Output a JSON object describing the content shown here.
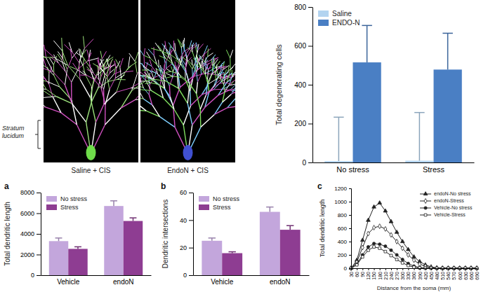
{
  "figure": {
    "images": [
      {
        "caption": "Saline + CIS"
      },
      {
        "caption": "EndoN + CIS"
      }
    ],
    "region_label": "Stratum lucidum"
  },
  "chart_data": [
    {
      "type": "bar",
      "ylabel": "Total degenerating cells",
      "categories": [
        "No stress",
        "Stress"
      ],
      "series": [
        {
          "name": "Saline",
          "color": "#b3d4f0",
          "values": [
            7,
            9
          ],
          "errors": [
            226,
            248
          ]
        },
        {
          "name": "ENDO-N",
          "color": "#4a7fc4",
          "values": [
            515,
            478
          ],
          "errors": [
            190,
            187
          ]
        }
      ],
      "ylim": [
        0,
        800
      ],
      "yticks": [
        0,
        200,
        400,
        600,
        800
      ],
      "legend": "upper left"
    },
    {
      "type": "bar",
      "title": "a",
      "ylabel": "Total dendritic length",
      "categories": [
        "Vehicle",
        "endoN"
      ],
      "series": [
        {
          "name": "No stress",
          "color": "#c3a6dc",
          "values": [
            3300,
            6700
          ],
          "errors": [
            300,
            500
          ]
        },
        {
          "name": "Stress",
          "color": "#8e3d92",
          "values": [
            2550,
            5250
          ],
          "errors": [
            200,
            300
          ]
        }
      ],
      "ylim": [
        0,
        8000
      ],
      "yticks": [
        0,
        2000,
        4000,
        6000,
        8000
      ],
      "legend": "upper left"
    },
    {
      "type": "bar",
      "title": "b",
      "ylabel": "Dendritic intersections",
      "categories": [
        "Vehicle",
        "endoN"
      ],
      "series": [
        {
          "name": "No stress",
          "color": "#c3a6dc",
          "values": [
            25,
            46
          ],
          "errors": [
            2,
            3.5
          ]
        },
        {
          "name": "Stress",
          "color": "#8e3d92",
          "values": [
            16,
            33
          ],
          "errors": [
            1,
            3
          ]
        }
      ],
      "ylim": [
        0,
        60
      ],
      "yticks": [
        0,
        20,
        40,
        60
      ],
      "legend": "upper left"
    },
    {
      "type": "line",
      "title": "c",
      "ylabel": "Total dendritic length",
      "xlabel": "Distance from the soma (mm)",
      "x": [
        30,
        60,
        90,
        120,
        150,
        180,
        210,
        240,
        270,
        300,
        330,
        360,
        390,
        420,
        450,
        480,
        510,
        540,
        570,
        600,
        630,
        660,
        690
      ],
      "series": [
        {
          "name": "endoN-No stress",
          "color": "#222222",
          "marker": "triangle",
          "values": [
            0,
            120,
            420,
            720,
            920,
            980,
            860,
            700,
            540,
            400,
            280,
            170,
            100,
            50,
            20,
            5,
            0,
            0,
            0,
            0,
            0,
            0,
            0
          ]
        },
        {
          "name": "endoN-Stress",
          "color": "#222222",
          "marker": "diamond",
          "values": [
            0,
            90,
            310,
            520,
            610,
            630,
            590,
            500,
            400,
            300,
            200,
            120,
            60,
            30,
            10,
            0,
            0,
            0,
            0,
            0,
            0,
            0,
            0
          ]
        },
        {
          "name": "Vehicle-No stress",
          "color": "#222222",
          "marker": "circle",
          "values": [
            0,
            60,
            200,
            320,
            370,
            360,
            330,
            270,
            200,
            130,
            70,
            30,
            10,
            0,
            0,
            0,
            0,
            0,
            0,
            0,
            0,
            0,
            0
          ]
        },
        {
          "name": "Vehicle-Stress",
          "color": "#222222",
          "marker": "square",
          "values": [
            0,
            50,
            170,
            270,
            320,
            300,
            250,
            190,
            130,
            80,
            40,
            15,
            5,
            0,
            0,
            0,
            0,
            0,
            0,
            0,
            0,
            0,
            0
          ]
        }
      ],
      "xlim": [
        30,
        690
      ],
      "xticks": [
        30,
        60,
        90,
        120,
        150,
        180,
        210,
        240,
        270,
        300,
        330,
        360,
        390,
        420,
        450,
        480,
        510,
        540,
        570,
        600,
        630,
        660,
        690
      ],
      "ylim": [
        0,
        1200
      ],
      "yticks": [
        0,
        200,
        400,
        600,
        800,
        1000,
        1200
      ],
      "legend": "upper right"
    }
  ]
}
